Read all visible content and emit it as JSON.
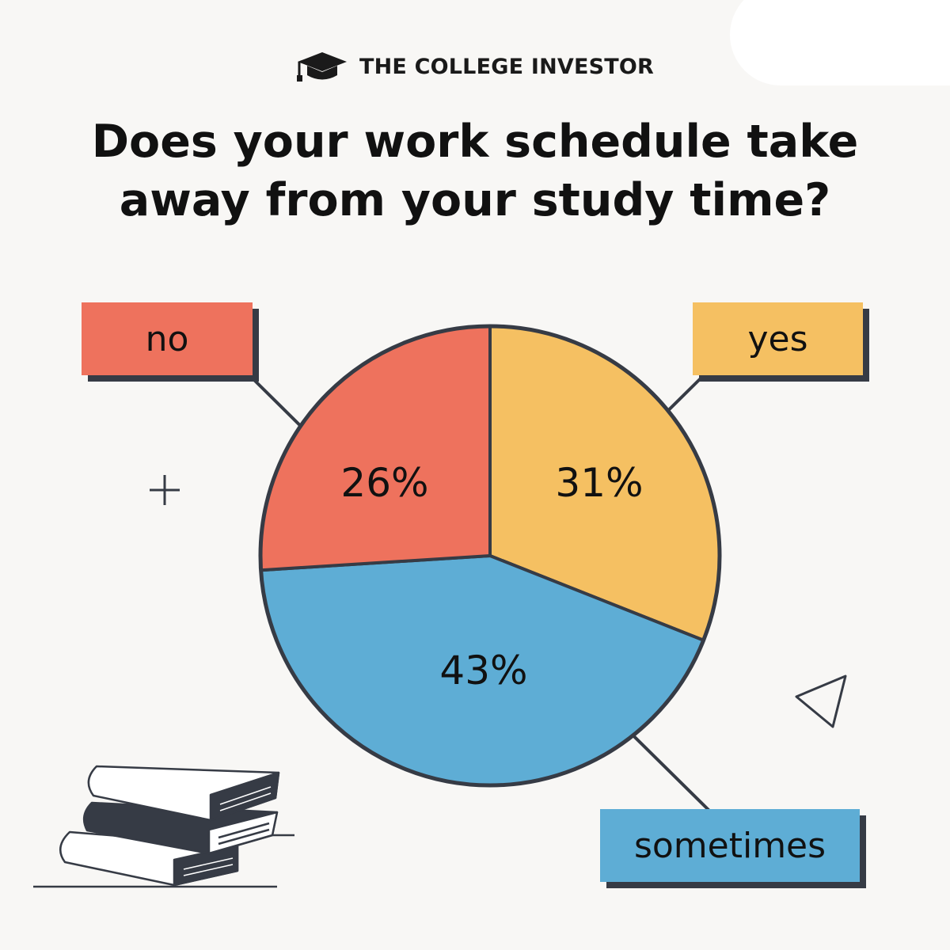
{
  "brand": {
    "name": "THE COLLEGE INVESTOR",
    "logo_icon": "graduation-cap-icon"
  },
  "headline": {
    "line1": "Does your work schedule take",
    "line2": "away from your study time?"
  },
  "colors": {
    "background": "#f8f7f5",
    "outline": "#363b45",
    "no": "#ee725d",
    "yes": "#f5c062",
    "sometimes": "#5eadd5"
  },
  "decorations": [
    "plus-icon",
    "triangle-icon",
    "book-stack-illustration"
  ],
  "chart_data": {
    "type": "pie",
    "title": "Does your work schedule take away from your study time?",
    "categories": [
      "yes",
      "sometimes",
      "no"
    ],
    "values": [
      31,
      43,
      26
    ],
    "value_labels": [
      "31%",
      "43%",
      "26%"
    ],
    "colors": [
      "#f5c062",
      "#5eadd5",
      "#ee725d"
    ],
    "legend": "callouts"
  }
}
